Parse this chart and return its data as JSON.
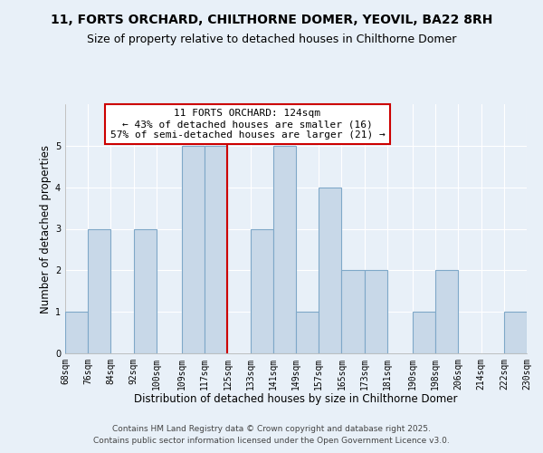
{
  "title": "11, FORTS ORCHARD, CHILTHORNE DOMER, YEOVIL, BA22 8RH",
  "subtitle": "Size of property relative to detached houses in Chilthorne Domer",
  "xlabel": "Distribution of detached houses by size in Chilthorne Domer",
  "ylabel": "Number of detached properties",
  "bin_edges": [
    68,
    76,
    84,
    92,
    100,
    109,
    117,
    125,
    133,
    141,
    149,
    157,
    165,
    173,
    181,
    190,
    198,
    206,
    214,
    222,
    230
  ],
  "bin_labels": [
    "68sqm",
    "76sqm",
    "84sqm",
    "92sqm",
    "100sqm",
    "109sqm",
    "117sqm",
    "125sqm",
    "133sqm",
    "141sqm",
    "149sqm",
    "157sqm",
    "165sqm",
    "173sqm",
    "181sqm",
    "190sqm",
    "198sqm",
    "206sqm",
    "214sqm",
    "222sqm",
    "230sqm"
  ],
  "counts": [
    1,
    3,
    0,
    3,
    0,
    5,
    5,
    0,
    3,
    5,
    1,
    4,
    2,
    2,
    0,
    1,
    2,
    0,
    0,
    1
  ],
  "bar_color": "#c8d8e8",
  "bar_edge_color": "#7fa8c8",
  "vline_x": 125,
  "vline_color": "#cc0000",
  "annotation_text": "11 FORTS ORCHARD: 124sqm\n← 43% of detached houses are smaller (16)\n57% of semi-detached houses are larger (21) →",
  "annotation_box_color": "#ffffff",
  "annotation_box_edge_color": "#cc0000",
  "ylim": [
    0,
    6
  ],
  "yticks": [
    0,
    1,
    2,
    3,
    4,
    5,
    6
  ],
  "background_color": "#e8f0f8",
  "footer_line1": "Contains HM Land Registry data © Crown copyright and database right 2025.",
  "footer_line2": "Contains public sector information licensed under the Open Government Licence v3.0.",
  "title_fontsize": 10,
  "subtitle_fontsize": 9,
  "axis_label_fontsize": 8.5,
  "tick_fontsize": 7,
  "annotation_fontsize": 8,
  "footer_fontsize": 6.5
}
